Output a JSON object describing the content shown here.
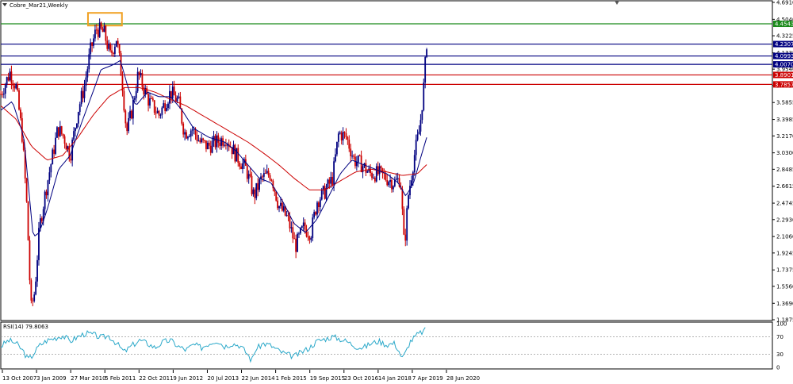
{
  "chart_data": {
    "type": "candlestick",
    "title": "Cobre_Mar21,Weekly",
    "y_ticks": [
      4.691,
      4.504,
      4.3225,
      4.1335,
      3.954,
      3.773,
      3.5855,
      3.3985,
      3.217,
      3.03,
      2.8485,
      2.6615,
      2.4745,
      2.293,
      2.106,
      1.9245,
      1.7375,
      1.556,
      1.369,
      1.1875
    ],
    "ylim": [
      1.1875,
      4.691
    ],
    "x_ticks": [
      "13 Oct 2007",
      "3 Jan 2009",
      "27 Mar 2010",
      "5 Feb 2011",
      "22 Oct 2011",
      "9 Jun 2012",
      "20 Jul 2013",
      "22 Jun 2014",
      "1 Feb 2015",
      "19 Sep 2015",
      "23 Oct 2016",
      "14 Jan 2018",
      "7 Apr 2019",
      "28 Jun 2020"
    ],
    "levels": [
      {
        "value": 4.4543,
        "label": "4.4543",
        "color": "#1a8a1a"
      },
      {
        "value": 4.2307,
        "label": "4.2307",
        "color": "#000080"
      },
      {
        "value": 4.0993,
        "label": "4.0993",
        "color": "#000080"
      },
      {
        "value": 4.007,
        "label": "4.0070",
        "color": "#000080"
      },
      {
        "value": 3.8901,
        "label": "3.8901",
        "color": "#cc0000"
      },
      {
        "value": 3.7857,
        "label": "3.7857",
        "color": "#cc0000"
      }
    ],
    "highlight_box": {
      "x_start": 0.113,
      "x_end": 0.157,
      "y_low": 4.435,
      "y_high": 4.575,
      "color": "#f0a020"
    },
    "price_keypoints": [
      [
        0.0,
        3.68
      ],
      [
        0.012,
        3.92
      ],
      [
        0.02,
        3.75
      ],
      [
        0.028,
        3.2
      ],
      [
        0.034,
        2.4
      ],
      [
        0.039,
        1.3
      ],
      [
        0.044,
        1.5
      ],
      [
        0.05,
        2.2
      ],
      [
        0.058,
        2.6
      ],
      [
        0.066,
        2.95
      ],
      [
        0.074,
        3.3
      ],
      [
        0.082,
        3.2
      ],
      [
        0.09,
        3.0
      ],
      [
        0.1,
        3.5
      ],
      [
        0.108,
        3.75
      ],
      [
        0.116,
        4.15
      ],
      [
        0.124,
        4.4
      ],
      [
        0.134,
        4.35
      ],
      [
        0.142,
        4.1
      ],
      [
        0.15,
        4.3
      ],
      [
        0.157,
        3.85
      ],
      [
        0.163,
        3.25
      ],
      [
        0.17,
        3.5
      ],
      [
        0.178,
        3.9
      ],
      [
        0.185,
        3.75
      ],
      [
        0.192,
        3.6
      ],
      [
        0.205,
        3.45
      ],
      [
        0.22,
        3.7
      ],
      [
        0.23,
        3.6
      ],
      [
        0.238,
        3.25
      ],
      [
        0.248,
        3.3
      ],
      [
        0.258,
        3.15
      ],
      [
        0.268,
        3.1
      ],
      [
        0.28,
        3.15
      ],
      [
        0.292,
        3.2
      ],
      [
        0.305,
        3.0
      ],
      [
        0.318,
        2.85
      ],
      [
        0.328,
        2.55
      ],
      [
        0.338,
        2.75
      ],
      [
        0.35,
        2.8
      ],
      [
        0.36,
        2.45
      ],
      [
        0.372,
        2.3
      ],
      [
        0.382,
        2.0
      ],
      [
        0.392,
        2.2
      ],
      [
        0.402,
        2.15
      ],
      [
        0.41,
        2.5
      ],
      [
        0.42,
        2.6
      ],
      [
        0.43,
        2.75
      ],
      [
        0.438,
        3.25
      ],
      [
        0.448,
        3.2
      ],
      [
        0.458,
        2.95
      ],
      [
        0.468,
        2.9
      ],
      [
        0.478,
        2.8
      ],
      [
        0.49,
        2.8
      ],
      [
        0.5,
        2.75
      ],
      [
        0.51,
        2.7
      ],
      [
        0.518,
        2.75
      ],
      [
        0.523,
        1.97
      ],
      [
        0.528,
        2.55
      ],
      [
        0.536,
        3.0
      ],
      [
        0.543,
        3.3
      ],
      [
        0.548,
        3.75
      ],
      [
        0.552,
        4.25
      ]
    ],
    "ma_fast_keypoints": [
      [
        0.0,
        3.5
      ],
      [
        0.015,
        3.6
      ],
      [
        0.03,
        3.2
      ],
      [
        0.042,
        2.1
      ],
      [
        0.05,
        2.15
      ],
      [
        0.06,
        2.4
      ],
      [
        0.075,
        2.85
      ],
      [
        0.09,
        3.0
      ],
      [
        0.1,
        3.25
      ],
      [
        0.115,
        3.6
      ],
      [
        0.13,
        3.95
      ],
      [
        0.145,
        4.0
      ],
      [
        0.155,
        4.05
      ],
      [
        0.165,
        3.75
      ],
      [
        0.175,
        3.55
      ],
      [
        0.19,
        3.7
      ],
      [
        0.205,
        3.65
      ],
      [
        0.22,
        3.65
      ],
      [
        0.235,
        3.5
      ],
      [
        0.25,
        3.3
      ],
      [
        0.27,
        3.2
      ],
      [
        0.29,
        3.15
      ],
      [
        0.305,
        3.05
      ],
      [
        0.32,
        2.9
      ],
      [
        0.335,
        2.75
      ],
      [
        0.35,
        2.7
      ],
      [
        0.365,
        2.5
      ],
      [
        0.38,
        2.25
      ],
      [
        0.395,
        2.15
      ],
      [
        0.41,
        2.3
      ],
      [
        0.425,
        2.55
      ],
      [
        0.44,
        2.8
      ],
      [
        0.455,
        2.95
      ],
      [
        0.47,
        2.9
      ],
      [
        0.485,
        2.85
      ],
      [
        0.5,
        2.8
      ],
      [
        0.515,
        2.7
      ],
      [
        0.525,
        2.55
      ],
      [
        0.535,
        2.7
      ],
      [
        0.545,
        3.0
      ],
      [
        0.552,
        3.2
      ]
    ],
    "ma_slow_keypoints": [
      [
        0.0,
        3.55
      ],
      [
        0.02,
        3.4
      ],
      [
        0.04,
        3.1
      ],
      [
        0.06,
        2.95
      ],
      [
        0.08,
        3.0
      ],
      [
        0.1,
        3.2
      ],
      [
        0.12,
        3.45
      ],
      [
        0.14,
        3.65
      ],
      [
        0.16,
        3.75
      ],
      [
        0.18,
        3.75
      ],
      [
        0.2,
        3.7
      ],
      [
        0.22,
        3.62
      ],
      [
        0.24,
        3.55
      ],
      [
        0.26,
        3.45
      ],
      [
        0.28,
        3.35
      ],
      [
        0.3,
        3.25
      ],
      [
        0.32,
        3.15
      ],
      [
        0.34,
        3.03
      ],
      [
        0.36,
        2.9
      ],
      [
        0.38,
        2.75
      ],
      [
        0.4,
        2.62
      ],
      [
        0.42,
        2.62
      ],
      [
        0.44,
        2.72
      ],
      [
        0.46,
        2.82
      ],
      [
        0.48,
        2.85
      ],
      [
        0.5,
        2.82
      ],
      [
        0.52,
        2.78
      ],
      [
        0.54,
        2.8
      ],
      [
        0.552,
        2.9
      ]
    ],
    "colors": {
      "bull": "#000080",
      "bear": "#cc0000",
      "ma_fast": "#000080",
      "ma_slow": "#cc0000",
      "rsi": "#2aa8c9",
      "grid": "#c8c8c8"
    },
    "rsi": {
      "label": "RSI(14) 79.8063",
      "levels": [
        70,
        30
      ],
      "y_ticks": [
        100,
        70,
        30,
        0
      ],
      "ylim": [
        0,
        100
      ],
      "keypoints": [
        [
          0.0,
          48
        ],
        [
          0.01,
          62
        ],
        [
          0.02,
          55
        ],
        [
          0.03,
          35
        ],
        [
          0.035,
          18
        ],
        [
          0.04,
          25
        ],
        [
          0.05,
          50
        ],
        [
          0.06,
          62
        ],
        [
          0.07,
          67
        ],
        [
          0.08,
          73
        ],
        [
          0.09,
          60
        ],
        [
          0.1,
          70
        ],
        [
          0.11,
          78
        ],
        [
          0.12,
          75
        ],
        [
          0.13,
          68
        ],
        [
          0.14,
          72
        ],
        [
          0.15,
          55
        ],
        [
          0.16,
          35
        ],
        [
          0.17,
          50
        ],
        [
          0.18,
          62
        ],
        [
          0.19,
          55
        ],
        [
          0.2,
          45
        ],
        [
          0.21,
          58
        ],
        [
          0.22,
          62
        ],
        [
          0.23,
          48
        ],
        [
          0.24,
          40
        ],
        [
          0.25,
          52
        ],
        [
          0.26,
          45
        ],
        [
          0.27,
          55
        ],
        [
          0.28,
          62
        ],
        [
          0.29,
          48
        ],
        [
          0.3,
          55
        ],
        [
          0.31,
          50
        ],
        [
          0.32,
          30
        ],
        [
          0.325,
          15
        ],
        [
          0.33,
          40
        ],
        [
          0.34,
          55
        ],
        [
          0.35,
          50
        ],
        [
          0.36,
          38
        ],
        [
          0.37,
          30
        ],
        [
          0.38,
          25
        ],
        [
          0.39,
          35
        ],
        [
          0.4,
          45
        ],
        [
          0.41,
          60
        ],
        [
          0.42,
          65
        ],
        [
          0.43,
          70
        ],
        [
          0.44,
          65
        ],
        [
          0.45,
          58
        ],
        [
          0.46,
          48
        ],
        [
          0.47,
          45
        ],
        [
          0.48,
          55
        ],
        [
          0.49,
          60
        ],
        [
          0.5,
          52
        ],
        [
          0.51,
          55
        ],
        [
          0.515,
          42
        ],
        [
          0.52,
          20
        ],
        [
          0.525,
          35
        ],
        [
          0.53,
          58
        ],
        [
          0.54,
          75
        ],
        [
          0.55,
          85
        ]
      ]
    }
  }
}
